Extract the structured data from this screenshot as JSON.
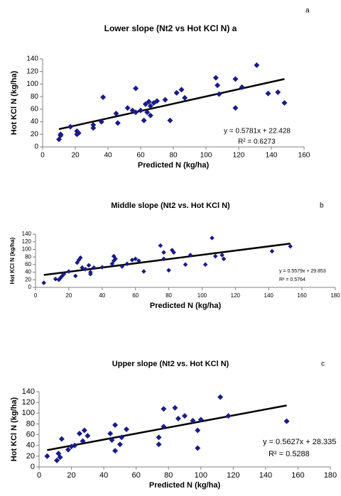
{
  "chart_data": [
    {
      "type": "scatter",
      "panel": "a",
      "title": "Lower slope (Nt2 vs Hot KCl N) a",
      "x_label": "Predicted N (kg/ha)",
      "y_label": "Hot KCl N (kg/ha)",
      "equation": "y = 0.5781x + 22.428",
      "r_squared": "R² = 0.6273",
      "trendline": {
        "slope": 0.5781,
        "intercept": 22.428
      },
      "color": "#1c1c84",
      "x": [
        10,
        11,
        11,
        17,
        21,
        21,
        22,
        31,
        31,
        36,
        37,
        45,
        46,
        52,
        55,
        57,
        57,
        60,
        62,
        63,
        64,
        65,
        66,
        66,
        68,
        70,
        75,
        78,
        82,
        85,
        87,
        106,
        107,
        108,
        118,
        118,
        122,
        131,
        138,
        144,
        148
      ],
      "values": [
        12,
        18,
        20,
        32,
        25,
        20,
        22,
        35,
        30,
        40,
        79,
        53,
        38,
        62,
        58,
        93,
        55,
        58,
        42,
        68,
        55,
        72,
        50,
        65,
        70,
        73,
        75,
        42,
        86,
        91,
        78,
        110,
        98,
        84,
        108,
        62,
        95,
        130,
        85,
        87,
        70
      ],
      "xlim": [
        0,
        160
      ],
      "xticks": [
        0,
        20,
        40,
        60,
        80,
        100,
        120,
        140,
        160
      ],
      "ylim": [
        0,
        140
      ],
      "yticks": [
        0,
        20,
        40,
        60,
        80,
        100,
        120,
        140
      ]
    },
    {
      "type": "scatter",
      "panel": "b",
      "title": "Middle slope (Nt2 vs. Hot KCl N)",
      "x_label": "Predicted N (kg/ha)",
      "y_label": "Hot KCl N (kg/ha)",
      "equation": "y = 0.5579x + 29.853",
      "r_squared": "R² = 0.5764",
      "trendline": {
        "slope": 0.5579,
        "intercept": 29.853
      },
      "color": "#1c1c84",
      "x": [
        5,
        12,
        14,
        15,
        16,
        17,
        20,
        24,
        25,
        26,
        27,
        28,
        30,
        32,
        33,
        33,
        35,
        40,
        46,
        47,
        47,
        48,
        52,
        55,
        58,
        60,
        62,
        65,
        75,
        77,
        77,
        80,
        82,
        83,
        90,
        93,
        102,
        106,
        108,
        112,
        113,
        142,
        153
      ],
      "values": [
        12,
        22,
        20,
        25,
        30,
        35,
        42,
        30,
        65,
        72,
        78,
        52,
        48,
        58,
        40,
        35,
        52,
        53,
        62,
        82,
        70,
        75,
        55,
        62,
        72,
        75,
        70,
        42,
        110,
        92,
        75,
        45,
        98,
        92,
        60,
        85,
        60,
        130,
        82,
        85,
        75,
        95,
        108
      ],
      "xlim": [
        0,
        180
      ],
      "xticks": [
        0,
        20,
        40,
        60,
        80,
        100,
        120,
        140,
        160,
        180
      ],
      "ylim": [
        0,
        140
      ],
      "yticks": [
        0,
        20,
        40,
        60,
        80,
        100,
        120,
        140
      ]
    },
    {
      "type": "scatter",
      "panel": "c",
      "title": "Upper slope (Nt2 vs. Hot KCl N)",
      "x_label": "Predicted N (kg/ha)",
      "y_label": "Hot KCl N (kg/ha)",
      "equation": "y = 0.5627x + 28.335",
      "r_squared": "R² = 0.5288",
      "trendline": {
        "slope": 0.5627,
        "intercept": 28.335
      },
      "color": "#1c1c84",
      "x": [
        5,
        11,
        12,
        13,
        14,
        18,
        20,
        22,
        25,
        27,
        28,
        30,
        44,
        45,
        47,
        47,
        50,
        51,
        54,
        74,
        74,
        77,
        77,
        84,
        86,
        90,
        95,
        98,
        98,
        100,
        112,
        117,
        153
      ],
      "values": [
        20,
        12,
        25,
        18,
        52,
        32,
        38,
        40,
        62,
        48,
        68,
        58,
        62,
        50,
        30,
        78,
        42,
        55,
        70,
        55,
        42,
        75,
        108,
        110,
        90,
        95,
        86,
        68,
        35,
        88,
        130,
        95,
        85
      ],
      "xlim": [
        0,
        180
      ],
      "xticks": [
        0,
        20,
        40,
        60,
        80,
        100,
        120,
        140,
        160,
        180
      ],
      "ylim": [
        0,
        140
      ],
      "yticks": [
        0,
        20,
        40,
        60,
        80,
        100,
        120,
        140
      ]
    }
  ]
}
